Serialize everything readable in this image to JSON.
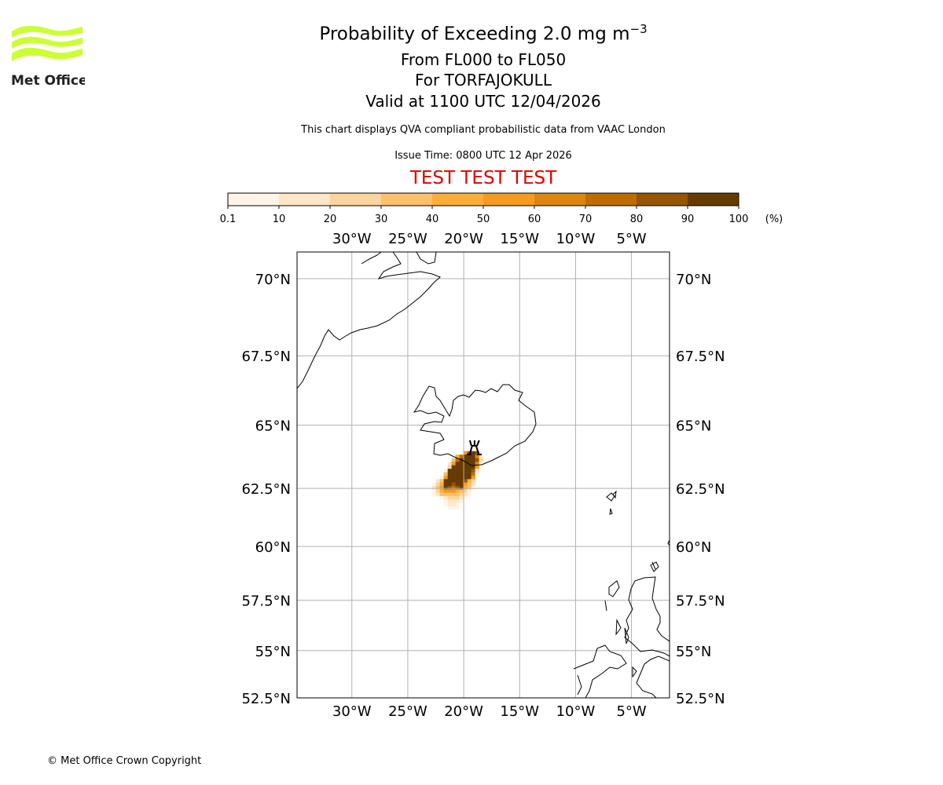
{
  "logo": {
    "text": "Met Office",
    "color": "#ccff33"
  },
  "header": {
    "title_main": "Probability of Exceeding 2.0 mg m",
    "title_exp": "−3",
    "level": "From FL000 to FL050",
    "volcano": "For TORFAJOKULL",
    "valid": "Valid at 1100 UTC 12/04/2026",
    "description": "This chart displays QVA compliant probabilistic data from VAAC London",
    "issue_time": "Issue Time: 0800 UTC 12 Apr 2026",
    "test_banner": "TEST TEST TEST"
  },
  "colorbar": {
    "ticks": [
      "0.1",
      "10",
      "20",
      "30",
      "40",
      "50",
      "60",
      "70",
      "80",
      "90",
      "100"
    ],
    "unit": "(%)",
    "colors": [
      "#fff5e6",
      "#fee6c6",
      "#fdd49e",
      "#fdc06c",
      "#fdae38",
      "#f39c1f",
      "#db860f",
      "#bd6e03",
      "#965503",
      "#663b03"
    ]
  },
  "map": {
    "lon_ticks": [
      {
        "lon": -30,
        "label": "30°W"
      },
      {
        "lon": -25,
        "label": "25°W"
      },
      {
        "lon": -20,
        "label": "20°W"
      },
      {
        "lon": -15,
        "label": "15°W"
      },
      {
        "lon": -10,
        "label": "10°W"
      },
      {
        "lon": -5,
        "label": "5°W"
      }
    ],
    "lat_ticks": [
      {
        "lat": 70,
        "label": "70°N"
      },
      {
        "lat": 67.5,
        "label": "67.5°N"
      },
      {
        "lat": 65,
        "label": "65°N"
      },
      {
        "lat": 62.5,
        "label": "62.5°N"
      },
      {
        "lat": 60,
        "label": "60°N"
      },
      {
        "lat": 57.5,
        "label": "57.5°N"
      },
      {
        "lat": 55,
        "label": "55°N"
      },
      {
        "lat": 52.5,
        "label": "52.5°N"
      }
    ],
    "extent": {
      "lon_min": -34.9,
      "lon_max": -1.6,
      "lat_min": 52.5,
      "lat_max": 70.8
    },
    "volcano": {
      "name": "TORFAJOKULL",
      "lon": -19.1,
      "lat": 63.9
    },
    "plume": {
      "origin_lon": -22.84,
      "origin_lat": 64.0,
      "cell_lon": 0.351,
      "cell_lat": 0.14,
      "rows": [
        "0000000069A90",
        "00000058AAA72",
        "0000048AAAA93",
        "000026AAAAA71",
        "00003AAAAAA60",
        "0001AAAAAA920",
        "0004AAAAAA810",
        "0016AAAAAA600",
        "024AAAAA95300",
        "135AA9AA64200",
        "246A989A54100",
        "1356665431000",
        "1244444321000",
        "0012333210000",
        "0001222100000",
        "0001221000000",
        "0000111000000"
      ]
    }
  },
  "footer": {
    "copyright": "© Met Office Crown Copyright"
  }
}
